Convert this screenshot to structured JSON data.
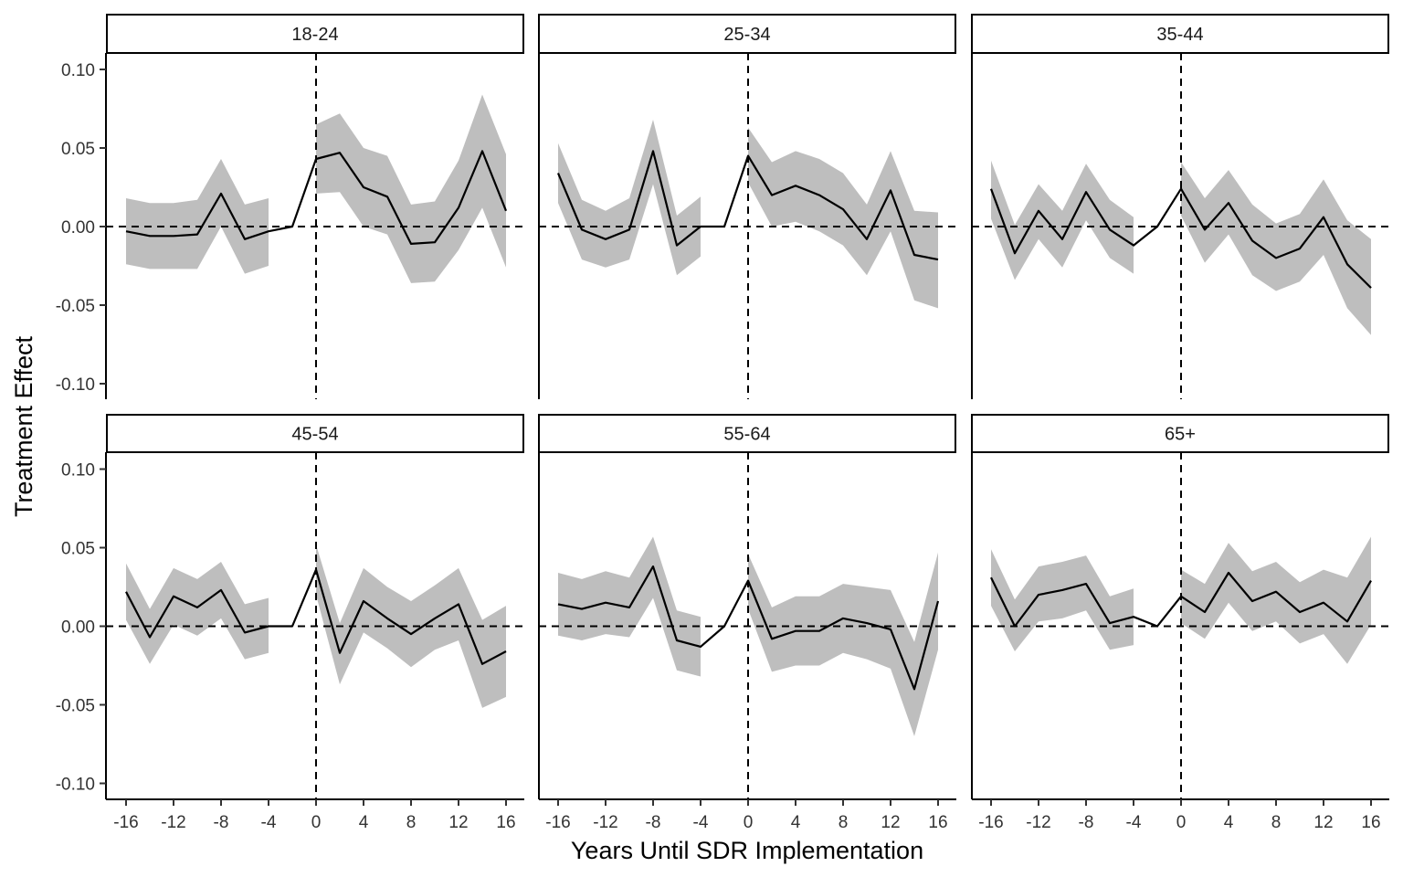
{
  "chart_data": {
    "type": "line",
    "xlabel": "Years Until SDR Implementation",
    "ylabel": "Treatment Effect",
    "x_ticks": [
      -16,
      -12,
      -8,
      -4,
      0,
      4,
      8,
      12,
      16
    ],
    "x_tick_labels": [
      "-16",
      "-12",
      "-8",
      "-4",
      "0",
      "4",
      "8",
      "12",
      "16"
    ],
    "y_ticks": [
      -0.1,
      -0.05,
      0.0,
      0.05,
      0.1
    ],
    "y_tick_labels": [
      "-0.10",
      "-0.05",
      "0.00",
      "0.05",
      "0.10"
    ],
    "xlim": [
      -17,
      17.5
    ],
    "ylim": [
      -0.109,
      0.109
    ],
    "reference_lines": {
      "vertical_x": 0,
      "horizontal_y": 0
    },
    "ribbon_color": "#bebebe",
    "line_color": "#000000",
    "x": [
      -16,
      -14,
      -12,
      -10,
      -8,
      -6,
      -4,
      -2,
      0,
      2,
      4,
      6,
      8,
      10,
      12,
      14,
      16
    ],
    "panels": [
      {
        "label": "18-24",
        "estimate": [
          -0.003,
          -0.006,
          -0.006,
          -0.005,
          0.021,
          -0.008,
          -0.003,
          0.0,
          0.043,
          0.047,
          0.025,
          0.019,
          -0.011,
          -0.01,
          0.012,
          0.048,
          0.01
        ],
        "lower": [
          -0.024,
          -0.027,
          -0.027,
          -0.027,
          0.0,
          -0.03,
          -0.025,
          null,
          0.021,
          0.022,
          0.0,
          -0.005,
          -0.036,
          -0.035,
          -0.015,
          0.012,
          -0.026
        ],
        "upper": [
          0.018,
          0.015,
          0.015,
          0.017,
          0.043,
          0.014,
          0.018,
          null,
          0.065,
          0.072,
          0.05,
          0.045,
          0.014,
          0.016,
          0.042,
          0.084,
          0.046
        ]
      },
      {
        "label": "25-34",
        "estimate": [
          0.034,
          -0.002,
          -0.008,
          -0.002,
          0.048,
          -0.012,
          0.0,
          0.0,
          0.045,
          0.02,
          0.026,
          0.02,
          0.011,
          -0.008,
          0.023,
          -0.018,
          -0.021
        ],
        "lower": [
          0.015,
          -0.021,
          -0.026,
          -0.021,
          0.027,
          -0.031,
          -0.019,
          null,
          0.028,
          0.0,
          0.003,
          -0.003,
          -0.012,
          -0.031,
          -0.003,
          -0.047,
          -0.052
        ],
        "upper": [
          0.053,
          0.017,
          0.01,
          0.018,
          0.068,
          0.007,
          0.019,
          null,
          0.063,
          0.041,
          0.048,
          0.043,
          0.034,
          0.014,
          0.048,
          0.01,
          0.009
        ]
      },
      {
        "label": "35-44",
        "estimate": [
          0.024,
          -0.017,
          0.01,
          -0.008,
          0.022,
          -0.002,
          -0.012,
          0.0,
          0.024,
          -0.002,
          0.015,
          -0.009,
          -0.02,
          -0.014,
          0.006,
          -0.024,
          -0.039
        ],
        "lower": [
          0.005,
          -0.034,
          -0.008,
          -0.026,
          0.004,
          -0.02,
          -0.03,
          null,
          0.007,
          -0.023,
          -0.005,
          -0.031,
          -0.041,
          -0.035,
          -0.018,
          -0.052,
          -0.069
        ],
        "upper": [
          0.042,
          0.001,
          0.027,
          0.01,
          0.04,
          0.017,
          0.006,
          null,
          0.041,
          0.018,
          0.036,
          0.014,
          0.002,
          0.008,
          0.03,
          0.004,
          -0.008
        ]
      },
      {
        "label": "45-54",
        "estimate": [
          0.022,
          -0.007,
          0.019,
          0.012,
          0.023,
          -0.004,
          0.0,
          0.0,
          0.036,
          -0.017,
          0.016,
          0.005,
          -0.005,
          0.005,
          0.014,
          -0.024,
          -0.016
        ],
        "lower": [
          0.004,
          -0.024,
          0.001,
          -0.006,
          0.005,
          -0.021,
          -0.017,
          null,
          0.02,
          -0.037,
          -0.004,
          -0.014,
          -0.026,
          -0.015,
          -0.009,
          -0.052,
          -0.045
        ],
        "upper": [
          0.04,
          0.011,
          0.037,
          0.03,
          0.041,
          0.014,
          0.018,
          null,
          0.052,
          0.002,
          0.037,
          0.025,
          0.016,
          0.026,
          0.037,
          0.004,
          0.013
        ]
      },
      {
        "label": "55-64",
        "estimate": [
          0.014,
          0.011,
          0.015,
          0.012,
          0.038,
          -0.009,
          -0.013,
          0.0,
          0.029,
          -0.008,
          -0.003,
          -0.003,
          0.005,
          0.002,
          -0.002,
          -0.04,
          0.016
        ],
        "lower": [
          -0.006,
          -0.009,
          -0.005,
          -0.007,
          0.018,
          -0.028,
          -0.032,
          null,
          0.011,
          -0.029,
          -0.025,
          -0.025,
          -0.017,
          -0.021,
          -0.027,
          -0.07,
          -0.015
        ],
        "upper": [
          0.034,
          0.03,
          0.035,
          0.031,
          0.057,
          0.01,
          0.006,
          null,
          0.046,
          0.012,
          0.019,
          0.019,
          0.027,
          0.025,
          0.023,
          -0.01,
          0.047
        ]
      },
      {
        "label": "65+",
        "estimate": [
          0.031,
          0.0,
          0.02,
          0.023,
          0.027,
          0.002,
          0.006,
          0.0,
          0.019,
          0.009,
          0.034,
          0.016,
          0.022,
          0.009,
          0.015,
          0.003,
          0.029
        ],
        "lower": [
          0.013,
          -0.016,
          0.003,
          0.005,
          0.01,
          -0.015,
          -0.012,
          null,
          0.002,
          -0.008,
          0.015,
          -0.003,
          0.003,
          -0.011,
          -0.005,
          -0.024,
          0.001
        ],
        "upper": [
          0.049,
          0.017,
          0.038,
          0.041,
          0.045,
          0.019,
          0.024,
          null,
          0.036,
          0.027,
          0.053,
          0.035,
          0.041,
          0.028,
          0.036,
          0.031,
          0.057
        ]
      }
    ]
  }
}
